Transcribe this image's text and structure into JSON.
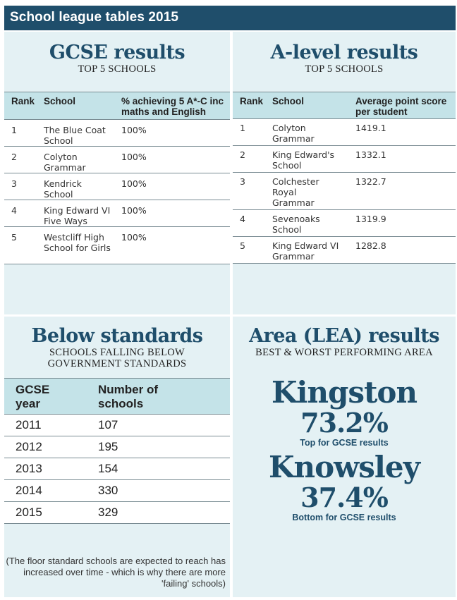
{
  "header": {
    "title": "School league tables 2015"
  },
  "gcse": {
    "title": "GCSE results",
    "subtitle": "TOP 5 SCHOOLS",
    "columns": [
      "Rank",
      "School",
      "% achieving 5 A*-C inc maths and English"
    ],
    "rows": [
      {
        "rank": "1",
        "school": "The Blue Coat School",
        "value": "100%"
      },
      {
        "rank": "2",
        "school": "Colyton Grammar",
        "value": "100%"
      },
      {
        "rank": "3",
        "school": "Kendrick School",
        "value": "100%"
      },
      {
        "rank": "4",
        "school": "King Edward VI Five Ways",
        "value": "100%"
      },
      {
        "rank": "5",
        "school": "Westcliff High School for Girls",
        "value": "100%"
      }
    ]
  },
  "alevel": {
    "title": "A-level results",
    "subtitle": "TOP 5 SCHOOLS",
    "columns": [
      "Rank",
      "School",
      "Average point score per student"
    ],
    "rows": [
      {
        "rank": "1",
        "school": "Colyton Grammar",
        "value": "1419.1"
      },
      {
        "rank": "2",
        "school": "King Edward's School",
        "value": "1332.1"
      },
      {
        "rank": "3",
        "school": "Colchester Royal Grammar",
        "value": "1322.7"
      },
      {
        "rank": "4",
        "school": "Sevenoaks School",
        "value": "1319.9"
      },
      {
        "rank": "5",
        "school": "King Edward VI Grammar",
        "value": "1282.8"
      }
    ]
  },
  "below": {
    "title": "Below standards",
    "subtitle": "SCHOOLS FALLING BELOW GOVERNMENT STANDARDS",
    "columns": [
      "GCSE year",
      "Number of schools"
    ],
    "rows": [
      {
        "year": "2011",
        "count": "107"
      },
      {
        "year": "2012",
        "count": "195"
      },
      {
        "year": "2013",
        "count": "154"
      },
      {
        "year": "2014",
        "count": "330"
      },
      {
        "year": "2015",
        "count": "329"
      }
    ],
    "note": "(The floor standard schools are expected to reach has increased over time - which is why there are more 'failing' schools)"
  },
  "area": {
    "title": "Area (LEA) results",
    "subtitle": "BEST & WORST PERFORMING AREA",
    "best": {
      "name": "Kingston",
      "percent": "73.2%",
      "caption": "Top for GCSE results"
    },
    "worst": {
      "name": "Knowsley",
      "percent": "37.4%",
      "caption": "Bottom for GCSE results"
    }
  }
}
